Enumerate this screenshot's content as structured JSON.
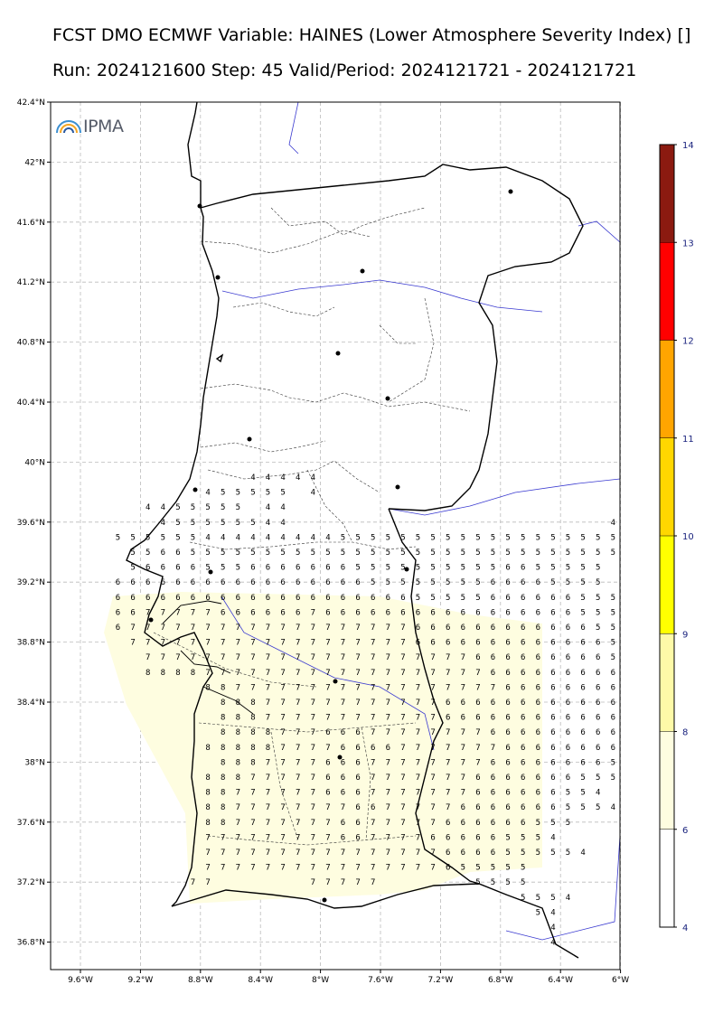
{
  "header": {
    "title_line1": "FCST DMO ECMWF Variable: HAINES (Lower Atmosphere Severity Index) []",
    "title_line2": "Run: 2024121600 Step: 45 Valid/Period: 2024121721 - 2024121721"
  },
  "logo": {
    "text": "IPMA",
    "icon": "ipma-rainbow-icon"
  },
  "map": {
    "lat_labels": [
      "42.4°N",
      "42°N",
      "41.6°N",
      "41.2°N",
      "40.8°N",
      "40.4°N",
      "40°N",
      "39.6°N",
      "39.2°N",
      "38.8°N",
      "38.4°N",
      "38°N",
      "37.6°N",
      "37.2°N",
      "36.8°N"
    ],
    "lon_labels": [
      "9.6°W",
      "9.2°W",
      "8.8°W",
      "8.4°W",
      "8°W",
      "7.6°W",
      "7.2°W",
      "6.8°W",
      "6.4°W",
      "6°W"
    ],
    "colors": {
      "coast": "#000000",
      "district": "#333333",
      "river": "#3a3ad0",
      "grid": "#bbbbbb",
      "shade": "#fefde0"
    }
  },
  "colorbar": {
    "labels": [
      "4",
      "6",
      "8",
      "9",
      "10",
      "11",
      "12",
      "13",
      "14"
    ],
    "colors": [
      "#ffffff",
      "#fefde0",
      "#fefaa8",
      "#ffff00",
      "#ffd700",
      "#ffa500",
      "#ff0000",
      "#8b1a10"
    ]
  },
  "grid_values": {
    "rows": [
      {
        "lat": 39.9,
        "start": -8.45,
        "values": "44444"
      },
      {
        "lat": 39.8,
        "start": -8.75,
        "values": "455555-4"
      },
      {
        "lat": 39.7,
        "start": -9.15,
        "values": "4455555-44--------------------------44"
      },
      {
        "lat": 39.6,
        "start": -9.05,
        "values": "455555544---------------------44444-45"
      },
      {
        "lat": 39.5,
        "start": -9.35,
        "values": "5555554444444445555555555555555555"
      },
      {
        "lat": 39.4,
        "start": -9.25,
        "values": "556655555555555555555555555555555"
      },
      {
        "lat": 39.3,
        "start": -9.25,
        "values": "56666555666666655555555556655555"
      },
      {
        "lat": 39.2,
        "start": -9.35,
        "values": "666666666666666665555555566665555"
      },
      {
        "lat": 39.1,
        "start": -9.35,
        "values": "6666666666666666666655555666666555"
      },
      {
        "lat": 39.0,
        "start": -9.35,
        "values": "6677777666666766666666666666666555"
      },
      {
        "lat": 38.9,
        "start": -9.35,
        "values": "6777777777777777777766666666666655"
      },
      {
        "lat": 38.8,
        "start": -9.25,
        "values": "777777777777777777766666666666665"
      },
      {
        "lat": 38.7,
        "start": -9.15,
        "values": "77777777777777777777776666666665"
      },
      {
        "lat": 38.6,
        "start": -9.15,
        "values": "8888777777777777777777766666666655"
      },
      {
        "lat": 38.5,
        "start": -8.75,
        "values": "88777777777777777777666666665"
      },
      {
        "lat": 38.4,
        "start": -8.65,
        "values": "8887777777777776666666666665"
      },
      {
        "lat": 38.3,
        "start": -8.65,
        "values": "88877777777777766666666666655"
      },
      {
        "lat": 38.2,
        "start": -8.65,
        "values": "888877766677777777666666666555"
      },
      {
        "lat": 38.1,
        "start": -8.75,
        "values": "8888877776666777777766666666555"
      },
      {
        "lat": 38.0,
        "start": -8.65,
        "values": "88877776667777777766666666555"
      },
      {
        "lat": 37.9,
        "start": -8.75,
        "values": "8887777766677777776666666555"
      },
      {
        "lat": 37.8,
        "start": -8.75,
        "values": "887777776667777777666666554"
      },
      {
        "lat": 37.7,
        "start": -8.75,
        "values": "8877777777667777766666665554"
      },
      {
        "lat": 37.6,
        "start": -8.75,
        "values": "8877777776677777666666555"
      },
      {
        "lat": 37.5,
        "start": -8.75,
        "values": "777777777667777666665554"
      },
      {
        "lat": 37.4,
        "start": -8.75,
        "values": "77777777777777776666555554"
      },
      {
        "lat": 37.3,
        "start": -8.75,
        "values": "7777777777777777655555"
      },
      {
        "lat": 37.2,
        "start": -8.85,
        "values": "77------77777------5555"
      },
      {
        "lat": 37.1,
        "start": -6.65,
        "values": "5554"
      },
      {
        "lat": 37.0,
        "start": -6.55,
        "values": "54"
      },
      {
        "lat": 36.9,
        "start": -6.45,
        "values": "4"
      },
      {
        "lat": 36.8,
        "start": -6.45,
        "values": "4"
      }
    ]
  }
}
